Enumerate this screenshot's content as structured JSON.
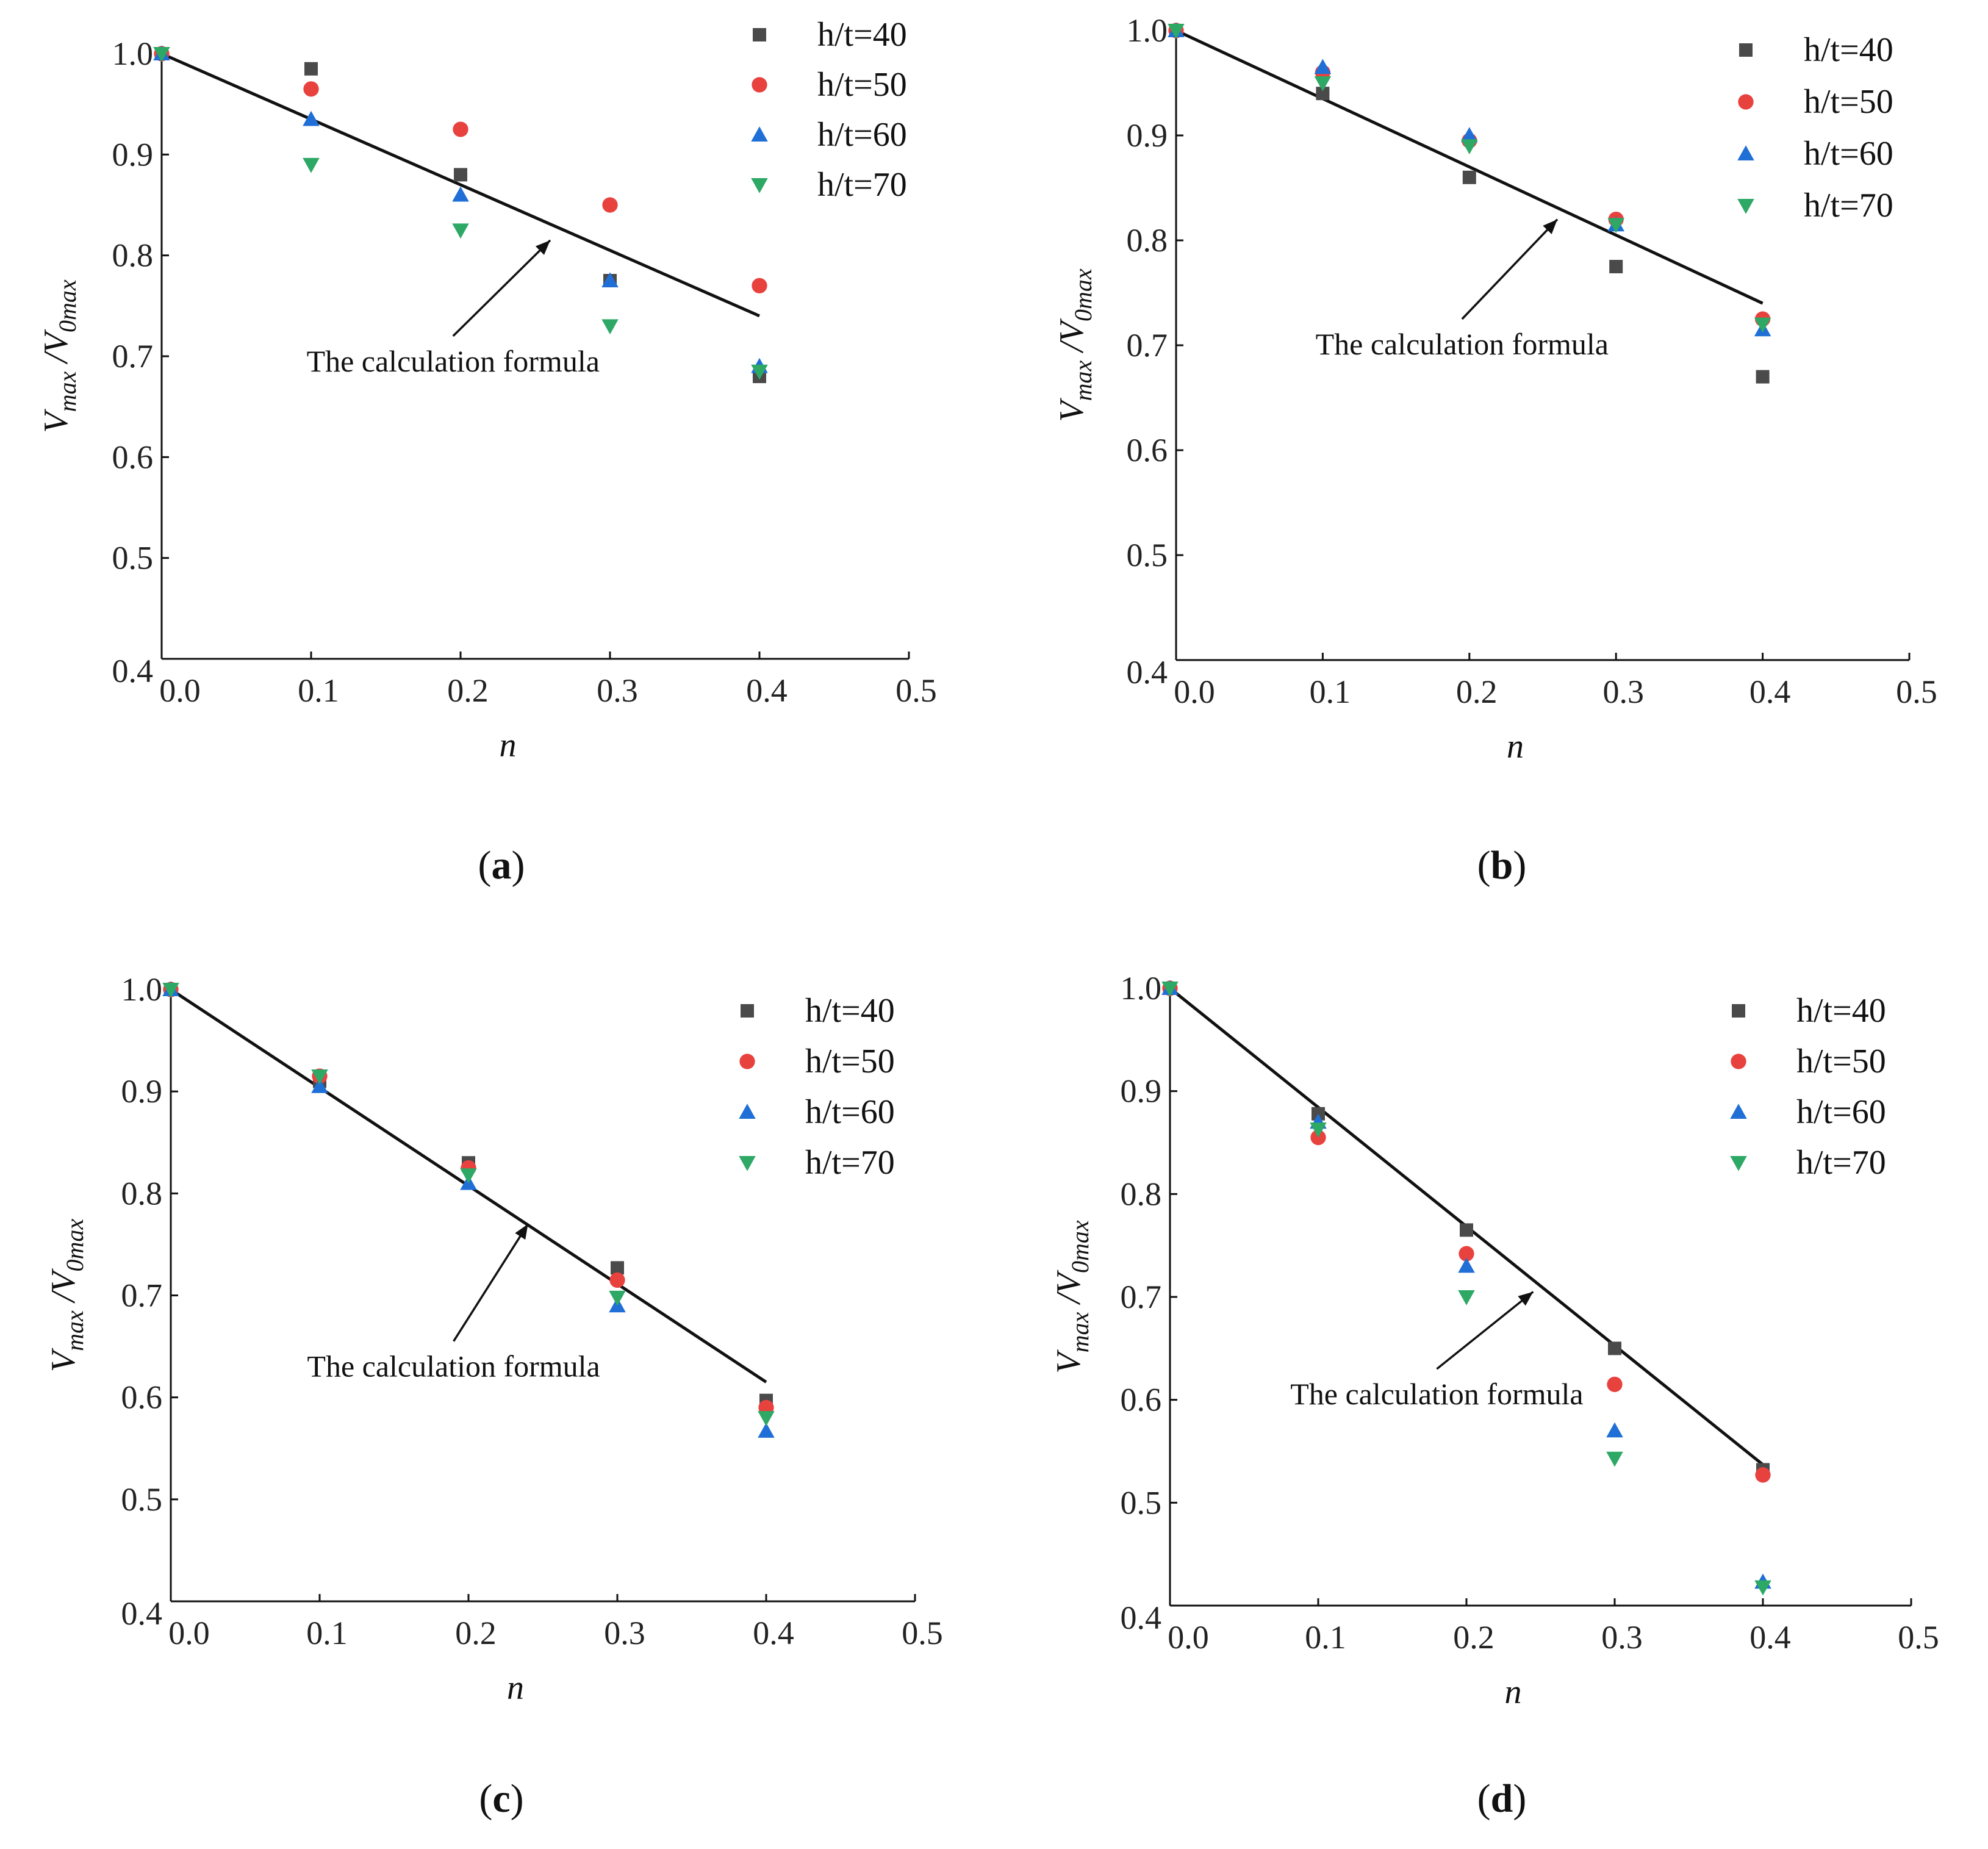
{
  "chart_data": [
    {
      "panel": "a",
      "type": "scatter",
      "caption_letter": "a",
      "xlabel": "n",
      "ylabel_base": "V",
      "ylabel_sub1": "max",
      "ylabel_sep": " /",
      "ylabel_sub2": "0max",
      "xlim": [
        0,
        0.5
      ],
      "ylim": [
        0.4,
        1.0
      ],
      "xticks": [
        0,
        0.1,
        0.2,
        0.3,
        0.4,
        0.5
      ],
      "yticks": [
        0.4,
        0.5,
        0.6,
        0.7,
        0.8,
        0.9,
        1.0
      ],
      "xtick_labels": [
        "0.0",
        "0.1",
        "0.2",
        "0.3",
        "0.4",
        "0.5"
      ],
      "ytick_labels": [
        "0.4",
        "0.5",
        "0.6",
        "0.7",
        "0.8",
        "0.9",
        "1.0"
      ],
      "formula": {
        "x": [
          0,
          0.4
        ],
        "y": [
          1.0,
          0.74
        ]
      },
      "annotation": {
        "text": "The calculation formula",
        "arrow_tip": [
          0.26,
          0.815
        ],
        "arrow_tail": [
          0.195,
          0.72
        ]
      },
      "series": [
        {
          "name": "h/t=40",
          "marker": "square",
          "color": "#4a4a4a",
          "x": [
            0,
            0.1,
            0.2,
            0.3,
            0.4
          ],
          "y": [
            1.0,
            0.985,
            0.88,
            0.775,
            0.68
          ]
        },
        {
          "name": "h/t=50",
          "marker": "circle",
          "color": "#e8423f",
          "x": [
            0,
            0.1,
            0.2,
            0.3,
            0.4
          ],
          "y": [
            1.0,
            0.965,
            0.925,
            0.85,
            0.77
          ]
        },
        {
          "name": "h/t=60",
          "marker": "triangle-up",
          "color": "#1f6fd6",
          "x": [
            0,
            0.1,
            0.2,
            0.3,
            0.4
          ],
          "y": [
            1.0,
            0.935,
            0.86,
            0.775,
            0.69
          ]
        },
        {
          "name": "h/t=70",
          "marker": "triangle-down",
          "color": "#2ea865",
          "x": [
            0,
            0.1,
            0.2,
            0.3,
            0.4
          ],
          "y": [
            1.0,
            0.89,
            0.825,
            0.73,
            0.685
          ]
        }
      ]
    },
    {
      "panel": "b",
      "type": "scatter",
      "caption_letter": "b",
      "xlabel": "n",
      "ylabel_base": "V",
      "ylabel_sub1": "max",
      "ylabel_sep": " /",
      "ylabel_sub2": "0max",
      "xlim": [
        0,
        0.5
      ],
      "ylim": [
        0.4,
        1.0
      ],
      "xticks": [
        0,
        0.1,
        0.2,
        0.3,
        0.4,
        0.5
      ],
      "yticks": [
        0.4,
        0.5,
        0.6,
        0.7,
        0.8,
        0.9,
        1.0
      ],
      "xtick_labels": [
        "0.0",
        "0.1",
        "0.2",
        "0.3",
        "0.4",
        "0.5"
      ],
      "ytick_labels": [
        "0.4",
        "0.5",
        "0.6",
        "0.7",
        "0.8",
        "0.9",
        "1.0"
      ],
      "formula": {
        "x": [
          0,
          0.4
        ],
        "y": [
          1.0,
          0.74
        ]
      },
      "annotation": {
        "text": "The calculation formula",
        "arrow_tip": [
          0.26,
          0.82
        ],
        "arrow_tail": [
          0.195,
          0.725
        ]
      },
      "series": [
        {
          "name": "h/t=40",
          "marker": "square",
          "color": "#4a4a4a",
          "x": [
            0,
            0.1,
            0.2,
            0.3,
            0.4
          ],
          "y": [
            1.0,
            0.94,
            0.86,
            0.775,
            0.67
          ]
        },
        {
          "name": "h/t=50",
          "marker": "circle",
          "color": "#e8423f",
          "x": [
            0,
            0.1,
            0.2,
            0.3,
            0.4
          ],
          "y": [
            1.0,
            0.96,
            0.895,
            0.82,
            0.725
          ]
        },
        {
          "name": "h/t=60",
          "marker": "triangle-up",
          "color": "#1f6fd6",
          "x": [
            0,
            0.1,
            0.2,
            0.3,
            0.4
          ],
          "y": [
            1.0,
            0.965,
            0.9,
            0.815,
            0.715
          ]
        },
        {
          "name": "h/t=70",
          "marker": "triangle-down",
          "color": "#2ea865",
          "x": [
            0,
            0.1,
            0.2,
            0.3,
            0.4
          ],
          "y": [
            1.0,
            0.95,
            0.89,
            0.815,
            0.72
          ]
        }
      ]
    },
    {
      "panel": "c",
      "type": "scatter",
      "caption_letter": "c",
      "xlabel": "n",
      "ylabel_base": "V",
      "ylabel_sub1": "max",
      "ylabel_sep": " /",
      "ylabel_sub2": "0max",
      "xlim": [
        0,
        0.5
      ],
      "ylim": [
        0.4,
        1.0
      ],
      "xticks": [
        0,
        0.1,
        0.2,
        0.3,
        0.4,
        0.5
      ],
      "yticks": [
        0.4,
        0.5,
        0.6,
        0.7,
        0.8,
        0.9,
        1.0
      ],
      "xtick_labels": [
        "0.0",
        "0.1",
        "0.2",
        "0.3",
        "0.4",
        "0.5"
      ],
      "ytick_labels": [
        "0.4",
        "0.5",
        "0.6",
        "0.7",
        "0.8",
        "0.9",
        "1.0"
      ],
      "formula": {
        "x": [
          0,
          0.4
        ],
        "y": [
          1.0,
          0.615
        ]
      },
      "annotation": {
        "text": "The calculation formula",
        "arrow_tip": [
          0.24,
          0.77
        ],
        "arrow_tail": [
          0.19,
          0.655
        ]
      },
      "series": [
        {
          "name": "h/t=40",
          "marker": "square",
          "color": "#4a4a4a",
          "x": [
            0,
            0.1,
            0.2,
            0.3,
            0.4
          ],
          "y": [
            1.0,
            0.91,
            0.83,
            0.727,
            0.597
          ]
        },
        {
          "name": "h/t=50",
          "marker": "circle",
          "color": "#e8423f",
          "x": [
            0,
            0.1,
            0.2,
            0.3,
            0.4
          ],
          "y": [
            1.0,
            0.915,
            0.825,
            0.715,
            0.59
          ]
        },
        {
          "name": "h/t=60",
          "marker": "triangle-up",
          "color": "#1f6fd6",
          "x": [
            0,
            0.1,
            0.2,
            0.3,
            0.4
          ],
          "y": [
            1.0,
            0.905,
            0.81,
            0.69,
            0.567
          ]
        },
        {
          "name": "h/t=70",
          "marker": "triangle-down",
          "color": "#2ea865",
          "x": [
            0,
            0.1,
            0.2,
            0.3,
            0.4
          ],
          "y": [
            1.0,
            0.915,
            0.818,
            0.698,
            0.58
          ]
        }
      ]
    },
    {
      "panel": "d",
      "type": "scatter",
      "caption_letter": "d",
      "xlabel": "n",
      "ylabel_base": "V",
      "ylabel_sub1": "max",
      "ylabel_sep": " /",
      "ylabel_sub2": "0max",
      "xlim": [
        0,
        0.5
      ],
      "ylim": [
        0.4,
        1.0
      ],
      "xticks": [
        0,
        0.1,
        0.2,
        0.3,
        0.4,
        0.5
      ],
      "yticks": [
        0.4,
        0.5,
        0.6,
        0.7,
        0.8,
        0.9,
        1.0
      ],
      "xtick_labels": [
        "0.0",
        "0.1",
        "0.2",
        "0.3",
        "0.4",
        "0.5"
      ],
      "ytick_labels": [
        "0.4",
        "0.5",
        "0.6",
        "0.7",
        "0.8",
        "0.9",
        "1.0"
      ],
      "formula": {
        "x": [
          0,
          0.4
        ],
        "y": [
          1.0,
          0.537
        ]
      },
      "annotation": {
        "text": "The calculation formula",
        "arrow_tip": [
          0.245,
          0.705
        ],
        "arrow_tail": [
          0.18,
          0.63
        ]
      },
      "series": [
        {
          "name": "h/t=40",
          "marker": "square",
          "color": "#4a4a4a",
          "x": [
            0,
            0.1,
            0.2,
            0.3,
            0.4
          ],
          "y": [
            1.0,
            0.878,
            0.765,
            0.65,
            0.532
          ]
        },
        {
          "name": "h/t=50",
          "marker": "circle",
          "color": "#e8423f",
          "x": [
            0,
            0.1,
            0.2,
            0.3,
            0.4
          ],
          "y": [
            1.0,
            0.855,
            0.742,
            0.615,
            0.527
          ]
        },
        {
          "name": "h/t=60",
          "marker": "triangle-up",
          "color": "#1f6fd6",
          "x": [
            0,
            0.1,
            0.2,
            0.3,
            0.4
          ],
          "y": [
            1.0,
            0.87,
            0.73,
            0.57,
            0.423
          ]
        },
        {
          "name": "h/t=70",
          "marker": "triangle-down",
          "color": "#2ea865",
          "x": [
            0,
            0.1,
            0.2,
            0.3,
            0.4
          ],
          "y": [
            1.0,
            0.863,
            0.7,
            0.543,
            0.418
          ]
        }
      ]
    }
  ]
}
